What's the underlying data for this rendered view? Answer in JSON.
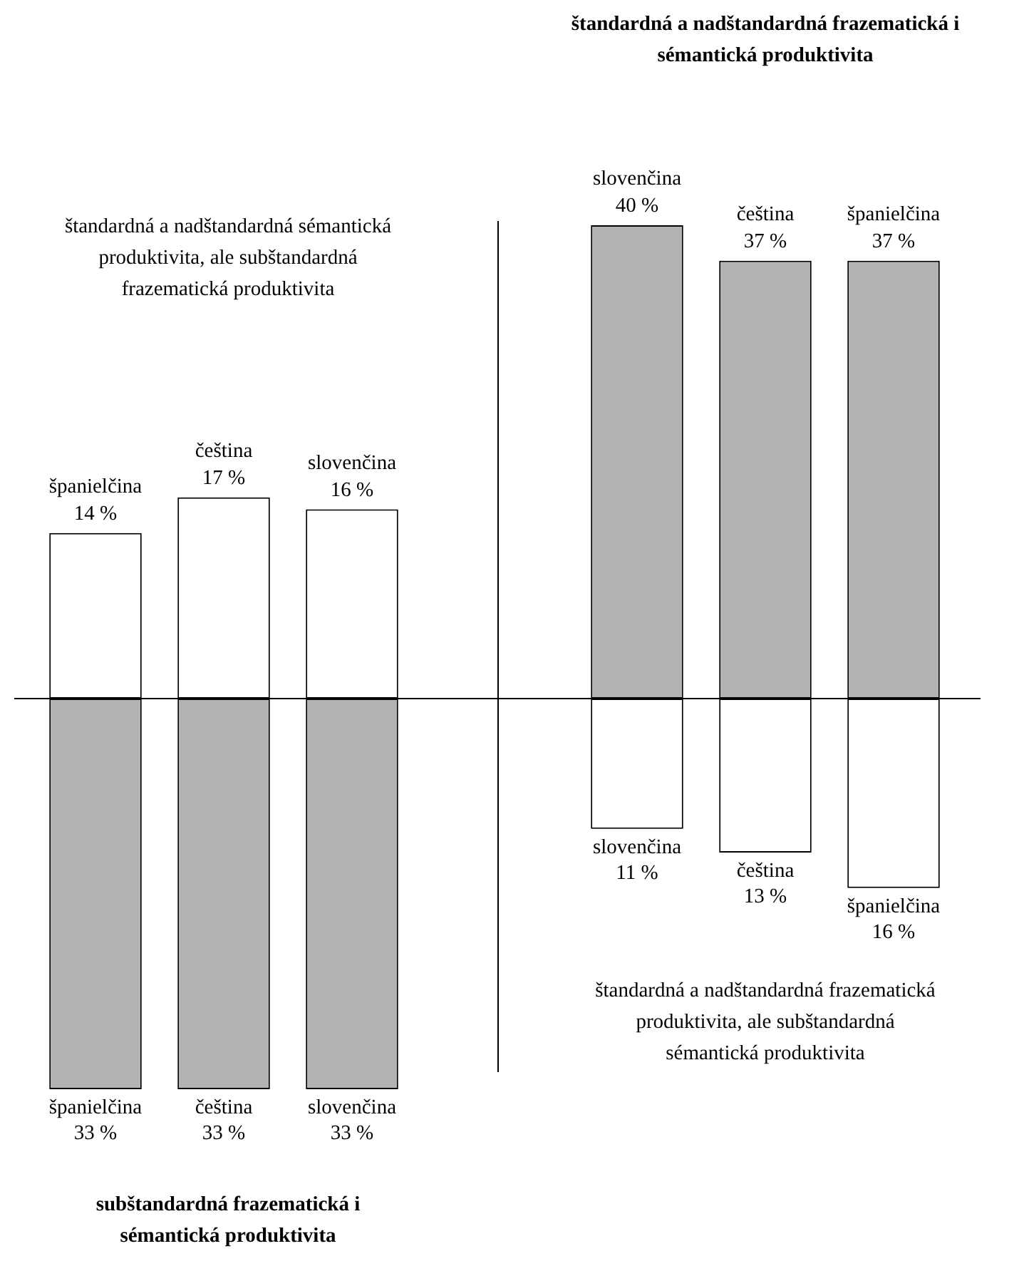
{
  "chart_data": [
    {
      "type": "bar",
      "stacked": true,
      "title": "subštandardná frazematická i sémantická produktivita",
      "annotations": [
        "štandardná a nadštandardná sémantická produktivita, ale subštandardná frazematická produktivita",
        {
          "text": "33 %",
          "x": "španielčina",
          "y": -33
        },
        {
          "text": "33 %",
          "x": "čeština",
          "y": -33
        },
        {
          "text": "33 %",
          "x": "slovenčina",
          "y": -33
        }
      ],
      "categories": [
        "španielčina",
        "čeština",
        "slovenčina"
      ],
      "series": [
        {
          "color": "#ffffff",
          "values": [
            14,
            17,
            16
          ],
          "value_labels": [
            "14 %",
            "17 %",
            "16 %"
          ]
        },
        {
          "color": "#b3b3b3",
          "values": [
            -33,
            -33,
            -33
          ]
        }
      ]
    },
    {
      "type": "bar",
      "stacked": true,
      "title": "štandardná a nadštandardná frazematická i sémantická produktivita",
      "annotations": [
        "štandardná a nadštandardná frazematická produktivita, ale subštandardná sémantická produktivita",
        {
          "text": "11 %",
          "x": "slovenčina",
          "y": -11
        },
        {
          "text": "13 %",
          "x": "čeština",
          "y": -13
        },
        {
          "text": "16 %",
          "x": "španielčina",
          "y": -16
        }
      ],
      "categories": [
        "slovenčina",
        "čeština",
        "španielčina"
      ],
      "series": [
        {
          "color": "#b3b3b3",
          "values": [
            40,
            37,
            37
          ],
          "value_labels": [
            "40 %",
            "37 %",
            "37 %"
          ]
        },
        {
          "color": "#ffffff",
          "values": [
            -11,
            -13,
            -16
          ]
        }
      ]
    }
  ]
}
